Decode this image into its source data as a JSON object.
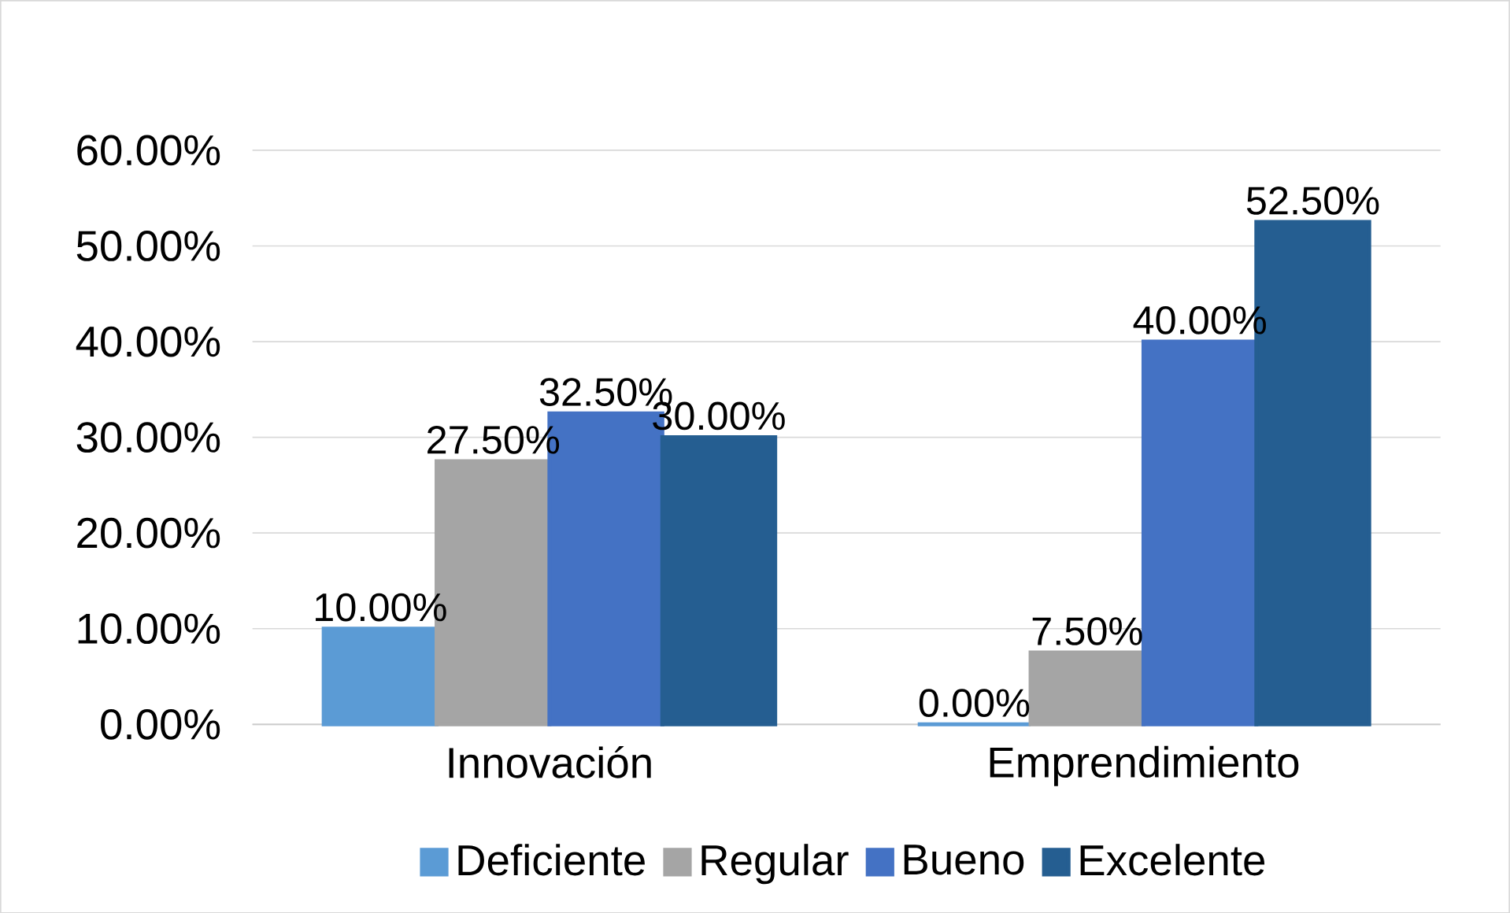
{
  "chart_data": {
    "type": "bar",
    "categories": [
      "Innovación",
      "Emprendimiento"
    ],
    "series": [
      {
        "name": "Deficiente",
        "color": "#5b9bd5",
        "values": [
          10,
          0
        ],
        "value_labels": [
          "10.00%",
          "0.00%"
        ]
      },
      {
        "name": "Regular",
        "color": "#a5a5a5",
        "values": [
          27.5,
          7.5
        ],
        "value_labels": [
          "27.50%",
          "7.50%"
        ]
      },
      {
        "name": "Bueno",
        "color": "#4472c4",
        "values": [
          32.5,
          40
        ],
        "value_labels": [
          "32.50%",
          "40.00%"
        ]
      },
      {
        "name": "Excelente",
        "color": "#255e91",
        "values": [
          30,
          52.5
        ],
        "value_labels": [
          "30.00%",
          "52.50%"
        ]
      }
    ],
    "ylim": [
      0,
      60
    ],
    "yticks": [
      {
        "value": 0,
        "label": "0.00%"
      },
      {
        "value": 10,
        "label": "10.00%"
      },
      {
        "value": 20,
        "label": "20.00%"
      },
      {
        "value": 30,
        "label": "30.00%"
      },
      {
        "value": 40,
        "label": "40.00%"
      },
      {
        "value": 50,
        "label": "50.00%"
      },
      {
        "value": 60,
        "label": "60.00%"
      }
    ],
    "grid": "y",
    "legend": "bottom"
  }
}
